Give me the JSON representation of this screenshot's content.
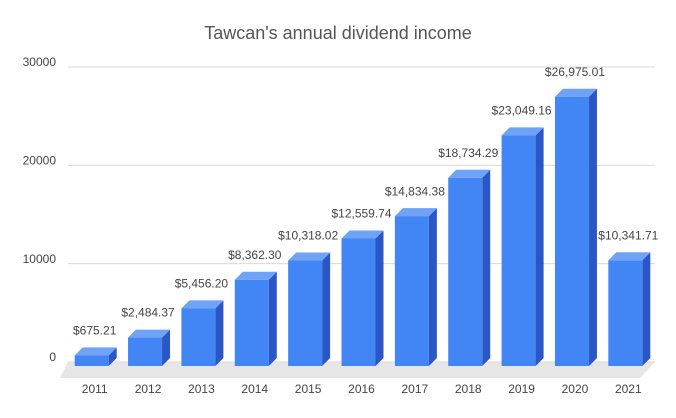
{
  "chart_data": {
    "type": "bar3d",
    "title": "Tawcan's annual dividend income",
    "categories": [
      "2011",
      "2012",
      "2013",
      "2014",
      "2015",
      "2016",
      "2017",
      "2018",
      "2019",
      "2020",
      "2021"
    ],
    "values": [
      675.21,
      2484.37,
      5456.2,
      8362.3,
      10318.02,
      12559.74,
      14834.38,
      18734.29,
      23049.16,
      26975.01,
      10341.71
    ],
    "value_labels": [
      "$675.21",
      "$2,484.37",
      "$5,456.20",
      "$8,362.30",
      "$10,318.02",
      "$12,559.74",
      "$14,834.38",
      "$18,734.29",
      "$23,049.16",
      "$26,975.01",
      "$10,341.71"
    ],
    "color": "#4285f4",
    "ylim": [
      0,
      30000
    ],
    "yticks": [
      0,
      10000,
      20000,
      30000
    ],
    "grid": true
  }
}
